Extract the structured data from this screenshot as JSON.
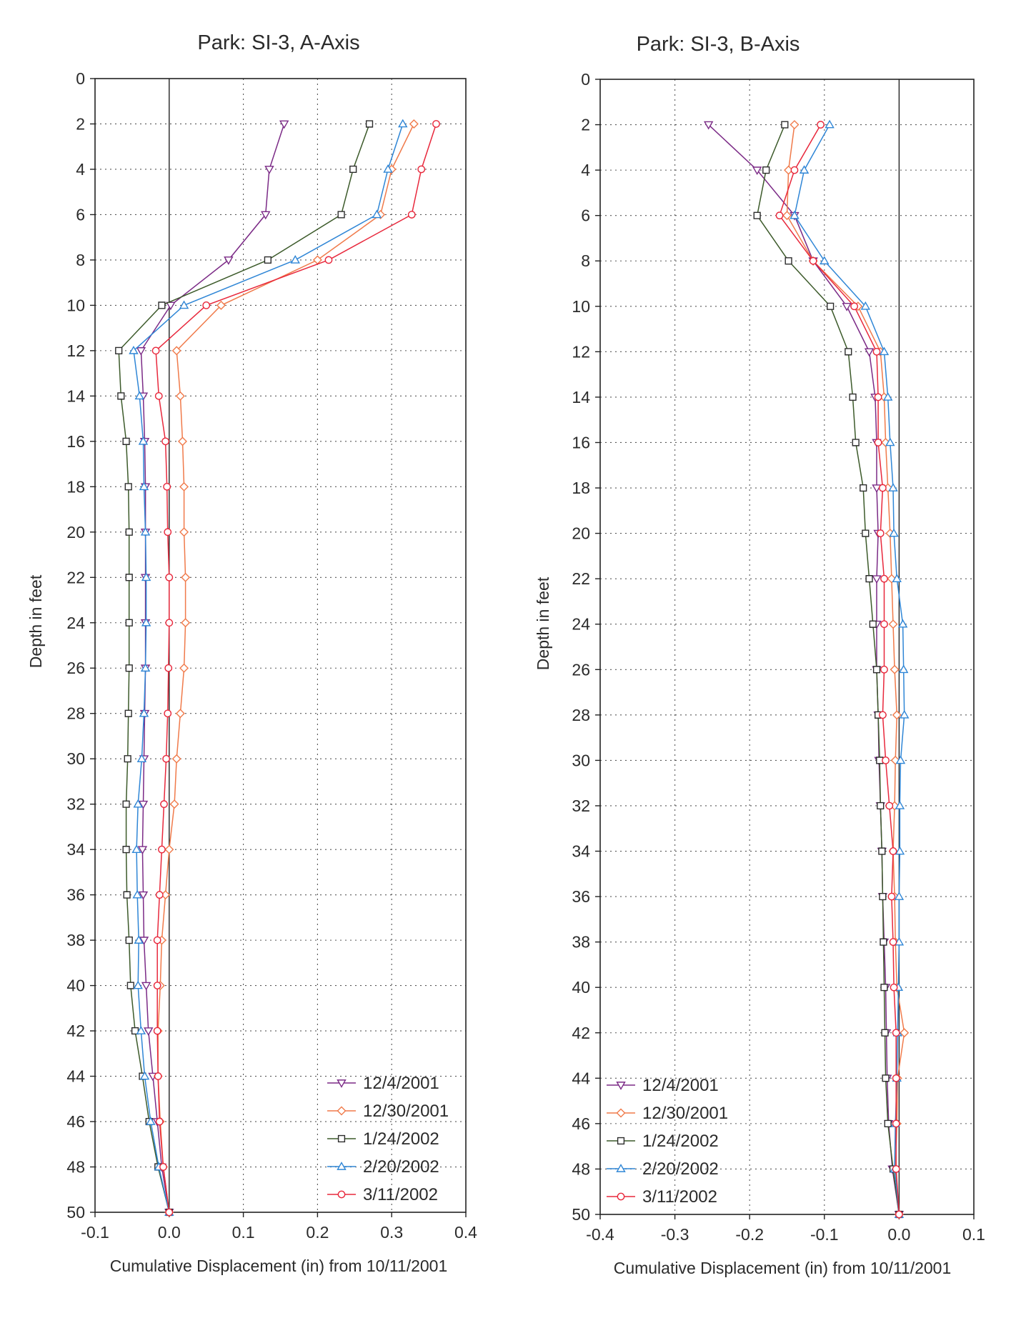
{
  "colors": {
    "12/4/2001": "#7b2a86",
    "12/30/2001": "#f07a4a",
    "1/24/2002": "#2c2c2c",
    "2/20/2002": "#2f86d6",
    "3/11/2002": "#e8283c",
    "line_1/24/2002": "#3c5a2a"
  },
  "markers": {
    "12/4/2001": "triangle-down",
    "12/30/2001": "diamond",
    "1/24/2002": "square",
    "2/20/2002": "triangle-up",
    "3/11/2002": "circle"
  },
  "chart_data": [
    {
      "type": "line",
      "title": "Park: SI-3, A-Axis",
      "xlabel": "Cumulative Displacement (in) from 10/11/2001",
      "ylabel": "Depth in feet",
      "xlim": [
        -0.1,
        0.4
      ],
      "ylim": [
        50,
        0
      ],
      "xticks": [
        "-0.1",
        "0.0",
        "0.1",
        "0.2",
        "0.3",
        "0.4"
      ],
      "yticks": [
        "0",
        "2",
        "4",
        "6",
        "8",
        "10",
        "12",
        "14",
        "16",
        "18",
        "20",
        "22",
        "24",
        "26",
        "28",
        "30",
        "32",
        "34",
        "36",
        "38",
        "40",
        "42",
        "44",
        "46",
        "48",
        "50"
      ],
      "grid": true,
      "legend_position": "bottom-right",
      "depths": [
        2,
        4,
        6,
        8,
        10,
        12,
        14,
        16,
        18,
        20,
        22,
        24,
        26,
        28,
        30,
        32,
        34,
        36,
        38,
        40,
        42,
        44,
        46,
        48,
        50
      ],
      "series": [
        {
          "name": "12/4/2001",
          "values": [
            0.155,
            0.135,
            0.13,
            0.08,
            0.002,
            -0.038,
            -0.035,
            -0.033,
            -0.032,
            -0.032,
            -0.032,
            -0.032,
            -0.032,
            -0.033,
            -0.034,
            -0.035,
            -0.036,
            -0.035,
            -0.034,
            -0.031,
            -0.028,
            -0.022,
            -0.016,
            -0.01,
            0.0
          ]
        },
        {
          "name": "12/30/2001",
          "values": [
            0.33,
            0.3,
            0.285,
            0.2,
            0.07,
            0.01,
            0.015,
            0.018,
            0.02,
            0.02,
            0.022,
            0.022,
            0.02,
            0.015,
            0.01,
            0.007,
            0.0,
            -0.005,
            -0.01,
            -0.012,
            -0.015,
            -0.015,
            -0.012,
            -0.008,
            0.0
          ]
        },
        {
          "name": "1/24/2002",
          "values": [
            0.27,
            0.248,
            0.232,
            0.133,
            -0.01,
            -0.068,
            -0.065,
            -0.058,
            -0.055,
            -0.054,
            -0.054,
            -0.054,
            -0.054,
            -0.055,
            -0.056,
            -0.058,
            -0.058,
            -0.057,
            -0.054,
            -0.052,
            -0.046,
            -0.036,
            -0.027,
            -0.015,
            0.0
          ]
        },
        {
          "name": "2/20/2002",
          "values": [
            0.315,
            0.295,
            0.28,
            0.17,
            0.02,
            -0.048,
            -0.04,
            -0.035,
            -0.034,
            -0.032,
            -0.031,
            -0.031,
            -0.032,
            -0.034,
            -0.037,
            -0.042,
            -0.044,
            -0.043,
            -0.041,
            -0.042,
            -0.038,
            -0.033,
            -0.025,
            -0.014,
            0.0
          ]
        },
        {
          "name": "3/11/2002",
          "values": [
            0.36,
            0.34,
            0.327,
            0.215,
            0.05,
            -0.018,
            -0.014,
            -0.005,
            -0.003,
            -0.002,
            0.0,
            0.0,
            -0.001,
            -0.002,
            -0.004,
            -0.007,
            -0.01,
            -0.013,
            -0.016,
            -0.016,
            -0.016,
            -0.015,
            -0.013,
            -0.008,
            0.0
          ]
        }
      ]
    },
    {
      "type": "line",
      "title": "Park: SI-3, B-Axis",
      "xlabel": "Cumulative Displacement (in) from 10/11/2001",
      "ylabel": "Depth in feet",
      "xlim": [
        -0.4,
        0.1
      ],
      "ylim": [
        50,
        0
      ],
      "xticks": [
        "-0.4",
        "-0.3",
        "-0.2",
        "-0.1",
        "0.0",
        "0.1"
      ],
      "yticks": [
        "0",
        "2",
        "4",
        "6",
        "8",
        "10",
        "12",
        "14",
        "16",
        "18",
        "20",
        "22",
        "24",
        "26",
        "28",
        "30",
        "32",
        "34",
        "36",
        "38",
        "40",
        "42",
        "44",
        "46",
        "48",
        "50"
      ],
      "grid": true,
      "legend_position": "bottom-left",
      "depths": [
        2,
        4,
        6,
        8,
        10,
        12,
        14,
        16,
        18,
        20,
        22,
        24,
        26,
        28,
        30,
        32,
        34,
        36,
        38,
        40,
        42,
        44,
        46,
        48,
        50
      ],
      "series": [
        {
          "name": "12/4/2001",
          "values": [
            -0.255,
            -0.19,
            -0.14,
            -0.115,
            -0.07,
            -0.04,
            -0.032,
            -0.03,
            -0.03,
            -0.028,
            -0.03,
            -0.03,
            -0.03,
            -0.028,
            -0.027,
            -0.025,
            -0.023,
            -0.022,
            -0.02,
            -0.018,
            -0.017,
            -0.016,
            -0.014,
            -0.009,
            0.0
          ]
        },
        {
          "name": "12/30/2001",
          "values": [
            -0.14,
            -0.148,
            -0.15,
            -0.115,
            -0.055,
            -0.025,
            -0.02,
            -0.018,
            -0.015,
            -0.012,
            -0.01,
            -0.008,
            -0.006,
            -0.003,
            -0.005,
            -0.006,
            -0.008,
            -0.006,
            -0.005,
            -0.003,
            0.007,
            -0.002,
            -0.003,
            -0.005,
            0.0
          ]
        },
        {
          "name": "1/24/2002",
          "values": [
            -0.153,
            -0.178,
            -0.19,
            -0.148,
            -0.092,
            -0.068,
            -0.062,
            -0.058,
            -0.048,
            -0.045,
            -0.04,
            -0.035,
            -0.03,
            -0.028,
            -0.026,
            -0.025,
            -0.023,
            -0.022,
            -0.021,
            -0.02,
            -0.019,
            -0.018,
            -0.015,
            -0.008,
            0.0
          ]
        },
        {
          "name": "2/20/2002",
          "values": [
            -0.093,
            -0.127,
            -0.14,
            -0.1,
            -0.045,
            -0.02,
            -0.015,
            -0.012,
            -0.008,
            -0.007,
            -0.003,
            0.005,
            0.006,
            0.007,
            0.002,
            0.001,
            0.001,
            0.0,
            0.0,
            -0.001,
            -0.002,
            -0.003,
            -0.005,
            -0.006,
            0.0
          ]
        },
        {
          "name": "3/11/2002",
          "values": [
            -0.105,
            -0.14,
            -0.16,
            -0.115,
            -0.06,
            -0.03,
            -0.028,
            -0.028,
            -0.022,
            -0.025,
            -0.02,
            -0.02,
            -0.02,
            -0.022,
            -0.018,
            -0.013,
            -0.008,
            -0.01,
            -0.008,
            -0.007,
            -0.004,
            -0.004,
            -0.004,
            -0.004,
            0.0
          ]
        }
      ]
    }
  ]
}
